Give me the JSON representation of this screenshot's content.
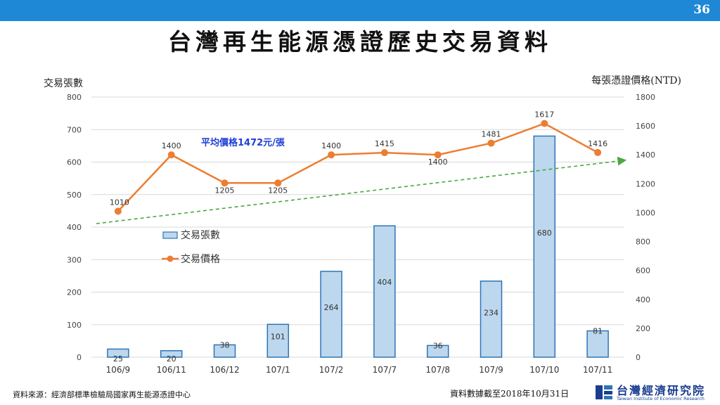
{
  "header": {
    "page_number": "36"
  },
  "title": "台灣再生能源憑證歷史交易資料",
  "chart_data": {
    "type": "bar",
    "categories": [
      "106/9",
      "106/11",
      "106/12",
      "107/1",
      "107/2",
      "107/7",
      "107/8",
      "107/9",
      "107/10",
      "107/11"
    ],
    "series": [
      {
        "name": "交易張數",
        "type": "bar",
        "axis": "left",
        "values": [
          25,
          20,
          38,
          101,
          264,
          404,
          36,
          234,
          680,
          81
        ],
        "color": "#bdd7ee",
        "stroke": "#2e75b6"
      },
      {
        "name": "交易價格",
        "type": "line",
        "axis": "right",
        "values": [
          1010,
          1400,
          1205,
          1205,
          1400,
          1415,
          1400,
          1481,
          1617,
          1416
        ],
        "color": "#ed7d31"
      }
    ],
    "ylabel_left": "交易張數",
    "ylabel_right": "每張憑證價格(NTD)",
    "ylim_left": [
      0,
      800
    ],
    "yticks_left": [
      0,
      100,
      200,
      300,
      400,
      500,
      600,
      700,
      800
    ],
    "ylim_right": [
      0,
      1800
    ],
    "yticks_right": [
      0,
      200,
      400,
      600,
      800,
      1000,
      1200,
      1400,
      1600,
      1800
    ],
    "grid": true,
    "legend_placement": "center-left",
    "annotation": "平均價格1472元/張",
    "annotation_color": "#1f3fd6",
    "trendline_color": "#4aa842"
  },
  "footer": {
    "source": "資料來源：經濟部標準檢驗局國家再生能源憑證中心",
    "as_of": "資料數據截至2018年10月31日",
    "logo_name": "台灣經濟研究院",
    "logo_en": "Taiwan Institute of Economic Research"
  }
}
